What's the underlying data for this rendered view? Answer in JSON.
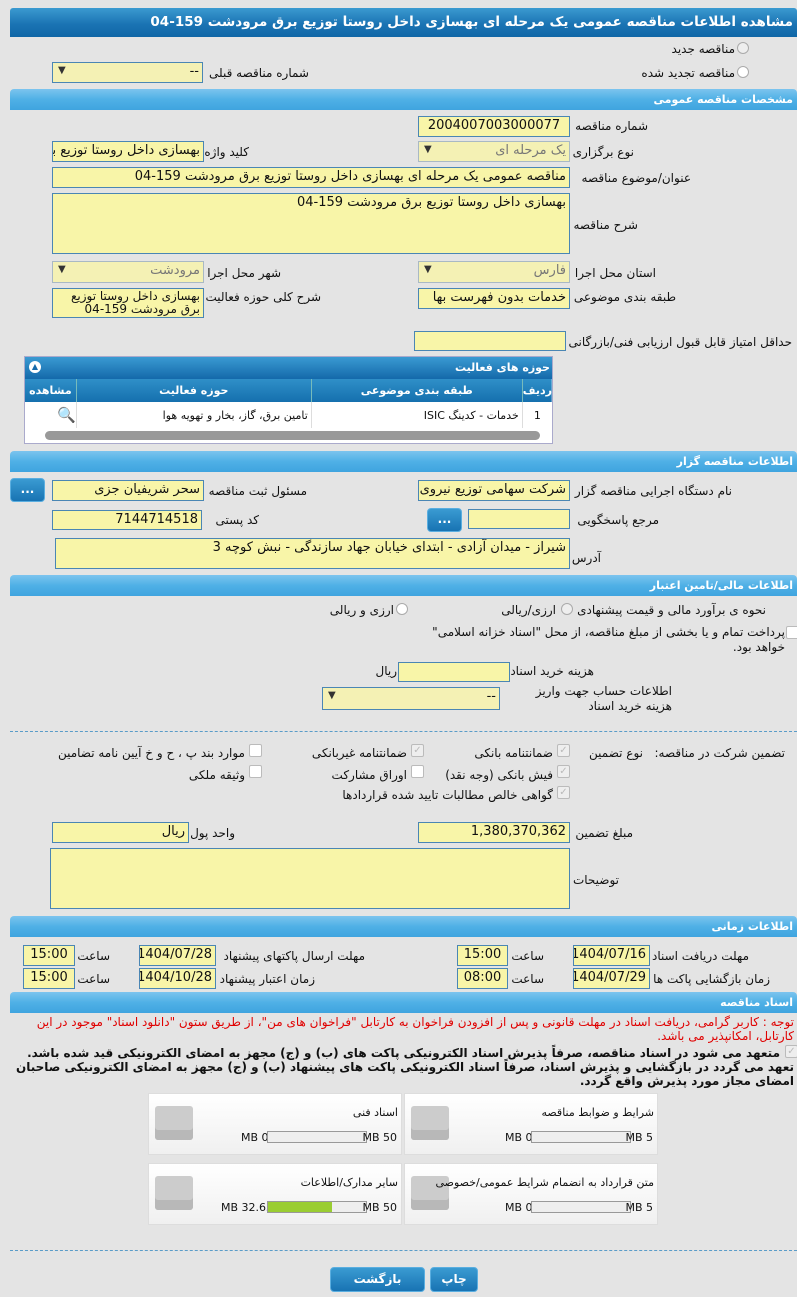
{
  "title": "مشاهده اطلاعات مناقصه عمومی یک مرحله ای بهسازی داخل روستا توزیع برق مرودشت 159-04",
  "tender_type": {
    "new": "مناقصه جدید",
    "renewed": "مناقصه تجدید شده",
    "prev_label": "شماره مناقصه قبلی",
    "prev_value": "--"
  },
  "general": {
    "header": "مشخصات مناقصه عمومی",
    "number_label": "شماره مناقصه",
    "number": "2004007003000077",
    "hold_type_label": "نوع برگزاری",
    "hold_type": "یک مرحله ای",
    "keyword_label": "کلید واژه",
    "keyword": "بهسازی داخل روستا توزیع برق",
    "subject_label": "عنوان/موضوع مناقصه",
    "subject": "مناقصه عمومی یک مرحله ای بهسازی داخل روستا توزیع برق مرودشت 159-04",
    "desc_label": "شرح مناقصه",
    "desc": "بهسازی داخل روستا توزیع برق مرودشت 159-04",
    "province_label": "استان محل اجرا",
    "province": "فارس",
    "city_label": "شهر محل اجرا",
    "city": "مرودشت",
    "category_label": "طبقه بندی موضوعی",
    "category": "خدمات بدون فهرست بها",
    "activity_desc_label": "شرح کلی حوزه فعالیت",
    "activity_desc": "بهسازی داخل روستا توزیع برق مرودشت 159-04",
    "min_score_label": "حداقل امتیاز قابل قبول ارزیابی فنی/بازرگانی",
    "min_score": ""
  },
  "activities": {
    "header": "حوزه های فعالیت",
    "columns": [
      "ردیف",
      "طبقه بندی موضوعی",
      "حوزه فعالیت",
      "مشاهده"
    ],
    "rows": [
      {
        "index": "1",
        "category": "خدمات - کدینگ ISIC",
        "field": "تامین برق، گاز، بخار و تهویه هوا"
      }
    ]
  },
  "organizer": {
    "header": "اطلاعات مناقصه گزار",
    "org_label": "نام دستگاه اجرایی مناقصه گزار",
    "org": "شرکت سهامی توزیع نیروی",
    "resp_label": "مسئول ثبت مناقصه",
    "resp": "سحر شریفیان جزی",
    "ref_label": "مرجع پاسخگویی",
    "ref": "",
    "postal_label": "کد پستی",
    "postal": "7144714518",
    "address_label": "آدرس",
    "address": "شیراز - میدان آزادی - ابتدای خیابان جهاد سازندگی - نبش کوچه 3",
    "more": "..."
  },
  "finance": {
    "header": "اطلاعات مالی/تامین اعتبار",
    "estimate_label": "نحوه ی برآورد مالی و قیمت پیشنهادی",
    "opt1": "ارزی/ریالی",
    "opt2": "ارزی و ریالی",
    "treasury": "پرداخت تمام و یا بخشی از مبلغ مناقصه، از محل \"اسناد خزانه اسلامی\" خواهد بود.",
    "fee_label": "هزینه خرید اسناد",
    "fee": "",
    "fee_unit": "ریال",
    "account_label": "اطلاعات حساب جهت واریز هزینه خرید اسناد",
    "account": "--"
  },
  "guarantee": {
    "label": "تضمین شرکت در مناقصه:",
    "type_label": "نوع تضمین",
    "items": [
      {
        "label": "ضمانتنامه بانکی",
        "checked": true
      },
      {
        "label": "ضمانتنامه غیربانکی",
        "checked": true
      },
      {
        "label": "موارد بند پ ، ح و خ آیین نامه تضامین",
        "checked": false
      },
      {
        "label": "فیش بانکی (وجه نقد)",
        "checked": true
      },
      {
        "label": "اوراق مشارکت",
        "checked": false
      },
      {
        "label": "وثیقه ملکی",
        "checked": false
      },
      {
        "label": "گواهی خالص مطالبات تایید شده قراردادها",
        "checked": true
      }
    ],
    "amount_label": "مبلغ تضمین",
    "amount": "1,380,370,362",
    "currency_label": "واحد پول",
    "currency": "ریال",
    "notes_label": "توضیحات",
    "notes": ""
  },
  "timing": {
    "header": "اطلاعات زمانی",
    "doc_deadline_label": "مهلت دریافت اسناد",
    "doc_deadline": "1404/07/16",
    "doc_time": "15:00",
    "submit_label": "مهلت ارسال پاکتهای پیشنهاد",
    "submit": "1404/07/28",
    "submit_time": "15:00",
    "open_label": "زمان بازگشایی پاکت ها",
    "open": "1404/07/29",
    "open_time": "08:00",
    "valid_label": "زمان اعتبار پیشنهاد",
    "valid": "1404/10/28",
    "valid_time": "15:00",
    "time_label": "ساعت"
  },
  "docs": {
    "header": "اسناد مناقصه",
    "note": "توجه : کاربر گرامی، دریافت اسناد در مهلت قانونی و پس از افزودن فراخوان به کارتابل \"فراخوان های من\"، از طریق ستون \"دانلود اسناد\" موجود در این کارتابل، امکانپذیر می باشد.",
    "commit": "متعهد می شود در اسناد مناقصه، صرفاً پذیرش اسناد الکترونیکی پاکت های (ب) و (ج) مجهز به امضای الکترونیکی قید شده باشد. تعهد می گردد در بازگشایی و پذیرش اسناد، صرفاً اسناد الکترونیکی پاکت های پیشنهاد (ب) و (ج) مجهز به امضای الکترونیکی صاحبان امضای مجاز مورد پذیرش واقع گردد.",
    "files": [
      {
        "name": "شرایط و ضوابط مناقصه",
        "used": "0 MB",
        "max": "5 MB",
        "fraction": 0
      },
      {
        "name": "اسناد فنی",
        "used": "0 MB",
        "max": "50 MB",
        "fraction": 0
      },
      {
        "name": "متن قرارداد به انضمام شرایط عمومی/خصوصی",
        "used": "0 MB",
        "max": "5 MB",
        "fraction": 0
      },
      {
        "name": "سایر مدارک/اطلاعات",
        "used": "32.65 MB",
        "max": "50 MB",
        "fraction": 0.653
      }
    ]
  },
  "buttons": {
    "back": "بازگشت",
    "print": "چاپ"
  },
  "colors": {
    "accent": "#1b74b4",
    "input_bg": "#f8f5a8",
    "note": "#e00000",
    "progress": "#9acd32"
  }
}
